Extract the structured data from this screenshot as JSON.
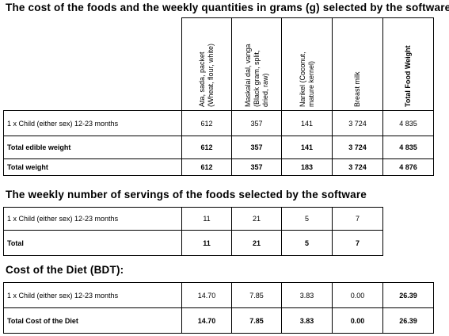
{
  "section1": {
    "heading": "The cost of the foods and the weekly quantities in grams (g) selected by the software",
    "columns": [
      {
        "lines": [
          "Ata, sada, packet",
          "(Wheat, flour, white)"
        ]
      },
      {
        "lines": [
          "Maskalai dal, vanga",
          "(Black gram, split,",
          "dried, raw)"
        ]
      },
      {
        "lines": [
          "Narikel (Coconut,",
          "mature kernel)"
        ]
      },
      {
        "lines": [
          "Breast milk"
        ]
      },
      {
        "lines": [
          "Total Food Weight"
        ]
      }
    ],
    "rows": [
      {
        "label": "1 x Child (either sex) 12-23 months",
        "values": [
          "612",
          "357",
          "141",
          "3 724",
          "4 835"
        ],
        "bold": false
      },
      {
        "label": "Total edible weight",
        "values": [
          "612",
          "357",
          "141",
          "3 724",
          "4 835"
        ],
        "bold": true
      },
      {
        "label": "Total weight",
        "values": [
          "612",
          "357",
          "183",
          "3 724",
          "4 876"
        ],
        "bold": true
      }
    ]
  },
  "section2": {
    "heading": "The weekly number of servings of the foods selected by the software",
    "rows": [
      {
        "label": "1 x Child (either sex) 12-23 months",
        "values": [
          "11",
          "21",
          "5",
          "7"
        ],
        "bold": false
      },
      {
        "label": "Total",
        "values": [
          "11",
          "21",
          "5",
          "7"
        ],
        "bold": true
      }
    ]
  },
  "section3": {
    "heading": "Cost of the Diet (BDT):",
    "rows": [
      {
        "label": "1 x Child (either sex) 12-23 months",
        "values": [
          "14.70",
          "7.85",
          "3.83",
          "0.00",
          "26.39"
        ],
        "bold": false,
        "boldLast": true
      },
      {
        "label": "Total Cost of the Diet",
        "values": [
          "14.70",
          "7.85",
          "3.83",
          "0.00",
          "26.39"
        ],
        "bold": true,
        "boldLast": true
      }
    ]
  }
}
